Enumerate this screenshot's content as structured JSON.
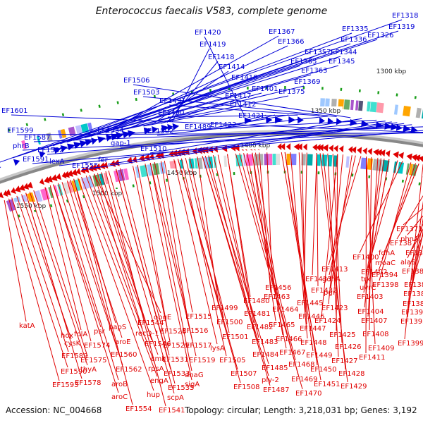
{
  "title": "Enterococcus faecalis V583, complete genome",
  "footer": {
    "accession": "Accession: NC_004668",
    "summary": "Topology: circular; Length: 3,218,031 bp; Genes: 3,192"
  },
  "colors": {
    "forward": "#0000d6",
    "reverse": "#e00000",
    "backbone": "#888888",
    "tick": "#1a9e1a"
  },
  "ticks": [
    "1300 kbp",
    "1350 kbp",
    "1400 kbp",
    "1450 kbp",
    "1500 kbp",
    "1550 kbp"
  ],
  "forward_labels": [
    "EF1318",
    "EF1319",
    "EF1326",
    "EF1335",
    "EF1336",
    "EF1344",
    "EF1345",
    "EF1357",
    "EF1363",
    "EF1365",
    "EF1366",
    "EF1367",
    "EF1369",
    "EF1375",
    "EF1401",
    "EF1410",
    "EF1412",
    "EF1414",
    "EF1417",
    "EF1418",
    "EF1419",
    "EF1420",
    "EF1421",
    "EF1422",
    "EF1489",
    "EF1490",
    "EF1491",
    "EF1502",
    "EF1503",
    "EF1506",
    "EF1510",
    "EF1534",
    "gap-1",
    "fer",
    "EF1555",
    "lexA",
    "EF1582",
    "EF1587",
    "EF1591",
    "phrB",
    "EF1599",
    "EF1601"
  ],
  "reverse_labels": [
    "EF1371",
    "phnA",
    "EF1377",
    "EF1381",
    "alaS",
    "EF1386",
    "EF1383",
    "EF1387",
    "EF1389",
    "EF1391",
    "EF1393",
    "EF1399",
    "moaC",
    "fdhA",
    "EF1394",
    "EF1398",
    "EF1400",
    "EF1402",
    "trx",
    "uvrC",
    "EF1403",
    "EF1404",
    "EF1407",
    "EF1408",
    "EF1409",
    "EF1411",
    "EF1413",
    "gdhA",
    "pgi",
    "EF1423",
    "EF1424",
    "EF1425",
    "EF1426",
    "EF1427",
    "EF1428",
    "EF1429",
    "EF1432",
    "EF1433",
    "EF1445",
    "EF1446",
    "EF1447",
    "EF1448",
    "EF1449",
    "EF1450",
    "EF1451",
    "EF1456",
    "EF1463",
    "EF1464",
    "EF1465",
    "EF1466",
    "EF1467",
    "EF1468",
    "EF1469",
    "EF1470",
    "EF1480",
    "EF1481",
    "EF1482",
    "EF1483",
    "EF1484",
    "EF1485",
    "ply-2",
    "EF1487",
    "EF1499",
    "EF1500",
    "EF1501",
    "EF1505",
    "EF1507",
    "EF1508",
    "lysA",
    "EF1515",
    "EF1516",
    "EF1517",
    "EF1519",
    "dnaG",
    "sigA",
    "EF1528",
    "EF1529",
    "EF1531",
    "EF1533",
    "EF1535",
    "scpA",
    "EF1541",
    "EF1544",
    "EF1546",
    "recQ-1",
    "obgE",
    "cmk",
    "rpsA",
    "engA",
    "hup",
    "EF1554",
    "papS",
    "aroE",
    "EF1560",
    "EF1562",
    "aroB",
    "aroC",
    "psr",
    "EF1574",
    "folA",
    "EF1575",
    "thyA",
    "EF1578",
    "hox",
    "cysK",
    "EF1589",
    "EF1590",
    "EF1593",
    "katA"
  ]
}
